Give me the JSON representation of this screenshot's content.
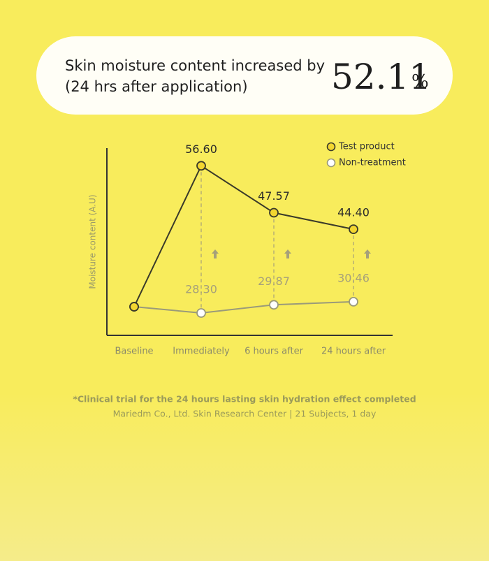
{
  "banner": {
    "line1": "Skin moisture content increased by",
    "line2": "(24 hrs after application)",
    "stat": "52.11",
    "stat_unit": "%"
  },
  "chart_data": {
    "type": "line",
    "ylabel": "Moisture content (A.U)",
    "categories": [
      "Baseline",
      "Immediately",
      "6 hours after",
      "24 hours after"
    ],
    "series": [
      {
        "name": "Non-treatment",
        "color": "#ffffff",
        "values": [
          29.5,
          28.3,
          29.87,
          30.46
        ],
        "value_labels": [
          null,
          "28.30",
          "29.87",
          "30.46"
        ]
      },
      {
        "name": "Test product",
        "color": "#f3d630",
        "values": [
          29.5,
          56.6,
          47.57,
          44.4
        ],
        "value_labels": [
          null,
          "56.60",
          "47.57",
          "44.40"
        ]
      }
    ],
    "ylim": [
      24,
      60
    ]
  },
  "footnote": {
    "line1": "*Clinical trial for the 24 hours lasting skin hydration effect completed",
    "line2": "Mariedm Co., Ltd. Skin Research Center | 21 Subjects, 1 day"
  }
}
